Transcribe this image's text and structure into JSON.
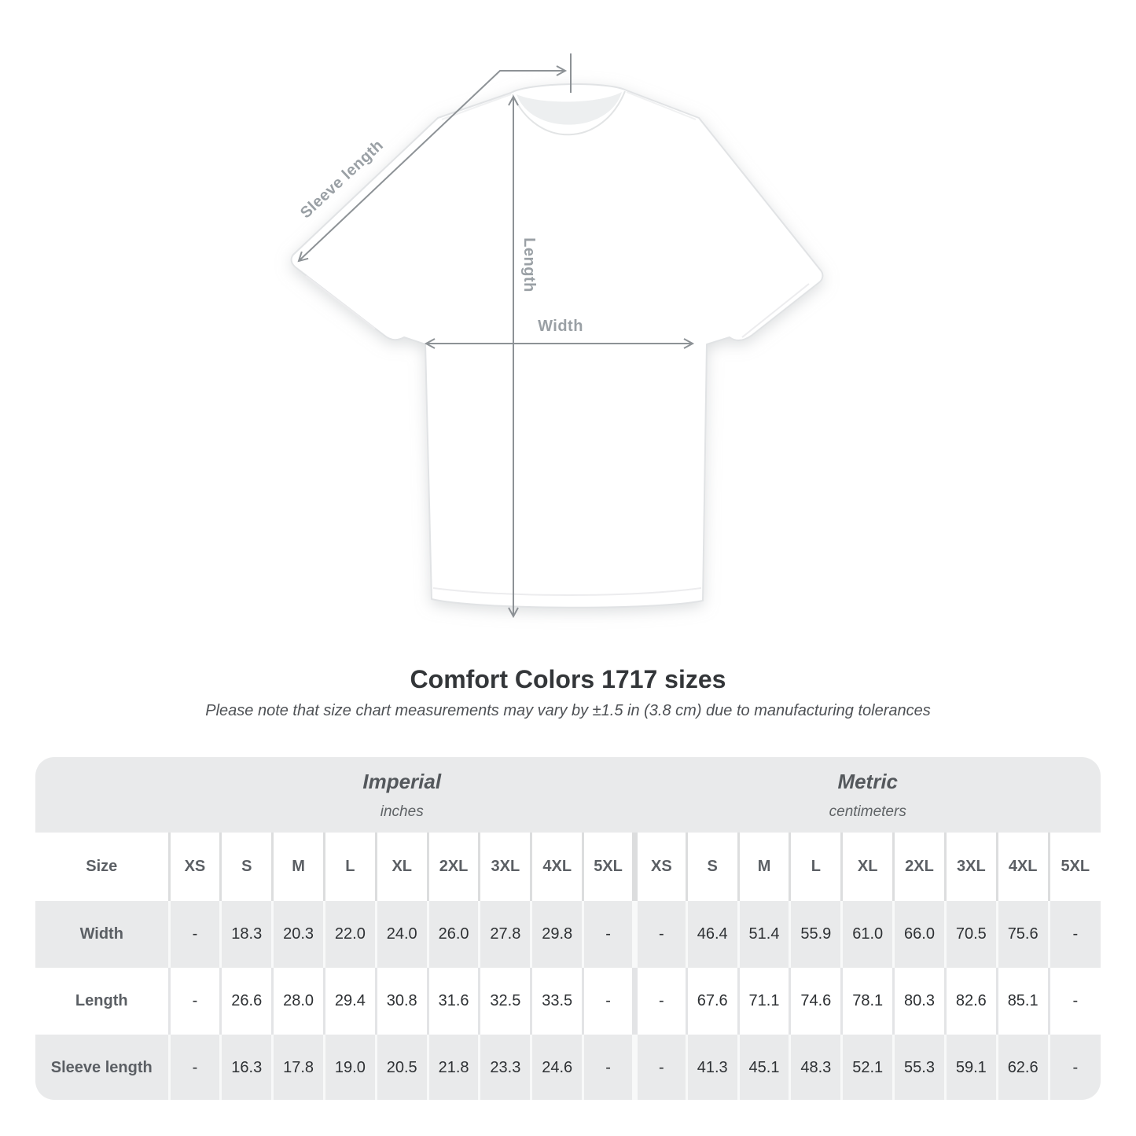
{
  "diagram": {
    "sleeve_label": "Sleeve length",
    "length_label": "Length",
    "width_label": "Width"
  },
  "title": "Comfort Colors 1717 sizes",
  "subtitle": "Please note that size chart measurements may vary by ±1.5 in (3.8 cm) due to manufacturing tolerances",
  "table": {
    "size_label": "Size",
    "sections": [
      {
        "name": "Imperial",
        "unit": "inches"
      },
      {
        "name": "Metric",
        "unit": "centimeters"
      }
    ],
    "sizes": [
      "XS",
      "S",
      "M",
      "L",
      "XL",
      "2XL",
      "3XL",
      "4XL",
      "5XL"
    ],
    "rows": [
      {
        "label": "Width",
        "imperial": [
          "-",
          "18.3",
          "20.3",
          "22.0",
          "24.0",
          "26.0",
          "27.8",
          "29.8",
          "-"
        ],
        "metric": [
          "-",
          "46.4",
          "51.4",
          "55.9",
          "61.0",
          "66.0",
          "70.5",
          "75.6",
          "-"
        ]
      },
      {
        "label": "Length",
        "imperial": [
          "-",
          "26.6",
          "28.0",
          "29.4",
          "30.8",
          "31.6",
          "32.5",
          "33.5",
          "-"
        ],
        "metric": [
          "-",
          "67.6",
          "71.1",
          "74.6",
          "78.1",
          "80.3",
          "82.6",
          "85.1",
          "-"
        ]
      },
      {
        "label": "Sleeve length",
        "imperial": [
          "-",
          "16.3",
          "17.8",
          "19.0",
          "20.5",
          "21.8",
          "23.3",
          "24.6",
          "-"
        ],
        "metric": [
          "-",
          "41.3",
          "45.1",
          "48.3",
          "52.1",
          "55.3",
          "59.1",
          "62.6",
          "-"
        ]
      }
    ]
  },
  "colors": {
    "table_gray": "#e9eaeb",
    "separator_on_white": "#e3e4e6",
    "separator_on_gray": "#f8f9f9",
    "arrow": "#8d9296",
    "diagram_label": "#9aa0a5",
    "title_text": "#333639",
    "header_text": "#5b5f64",
    "value_text": "#2e3134"
  }
}
